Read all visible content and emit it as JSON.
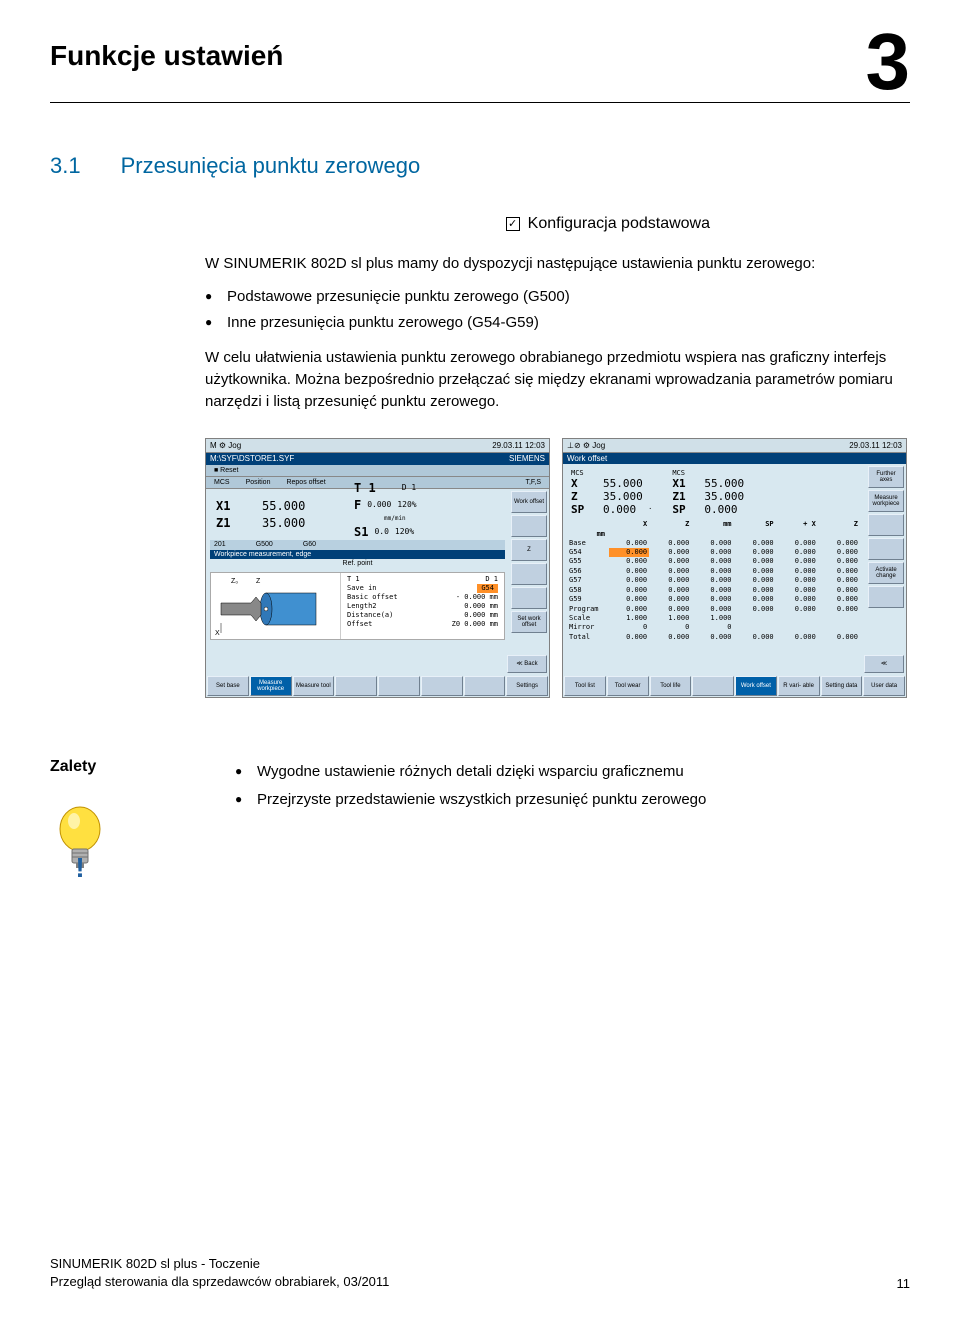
{
  "chapter": {
    "title": "Funkcje ustawień",
    "number": "3"
  },
  "section": {
    "num": "3.1",
    "title": "Przesunięcia punktu zerowego"
  },
  "config": {
    "label": "Konfiguracja podstawowa",
    "check": "✓"
  },
  "intro": "W SINUMERIK 802D sl plus mamy do dyspozycji następujące ustawienia punktu zerowego:",
  "bullets": [
    "Podstawowe przesunięcie punktu zerowego (G500)",
    "Inne przesunięcia punktu zerowego (G54-G59)"
  ],
  "para2": "W celu ułatwienia ustawienia punktu zerowego obrabianego przedmiotu wspiera nas graficzny interfejs użytkownika. Można bezpośrednio przełączać się między ekranami wprowadzania parametrów pomiaru narzędzi i listą przesunięć punktu zerowego.",
  "shotA": {
    "date": "29.03.11",
    "time": "12:03",
    "path": "M:\\SYF\\DSTORE1.SYF",
    "brand": "SIEMENS",
    "hdr": {
      "reset": "■ Reset",
      "mcs": "MCS",
      "pos": "Position",
      "repos": "Repos offset",
      "tfs": "T,F,S"
    },
    "axes": {
      "x1": "X1",
      "x1v": "55.000",
      "z1": "Z1",
      "z1v": "35.000",
      "reposX": "0.000 mm",
      "reposZ": "0.000 mm"
    },
    "tfs": {
      "t": "T 1",
      "d": "D 1",
      "f": "F",
      "fv": "0.000",
      "fpct": "120%",
      "fu": "mm/min",
      "s": "S1",
      "sv": "0.0",
      "spct": "120%",
      "su": "I"
    },
    "offsetbar": {
      "a": "201",
      "b": "G500",
      "c": "G60"
    },
    "wpTitle": "Workpiece measurement, edge",
    "refpoint": "Ref. point",
    "diagT": "T     1",
    "diagD": "D 1",
    "diag": {
      "savein": "Save in",
      "saveinV": "G54",
      "basic": "Basic offset",
      "basicV": "- 0.000 mm",
      "len": "Length2",
      "lenV": "0.000 mm",
      "dist": "Distance(a)",
      "distV": "0.000 mm",
      "off": "Offset",
      "offK": "Z0",
      "offV": "0.000 mm"
    },
    "side": {
      "work": "Work offset",
      "z": "Z",
      "setwork": "Set work offset"
    },
    "back": "≪ Back",
    "bottom": {
      "setbase": "Set base",
      "measwp": "Measure workpiece",
      "meastool": "Measure tool",
      "settings": "Settings"
    }
  },
  "shotB": {
    "date": "29.03.11",
    "time": "12:03",
    "title": "Work offset",
    "mcs": "MCS",
    "axes": {
      "x": "X",
      "xv": "55.000",
      "z": "Z",
      "zv": "35.000",
      "sp": "SP",
      "spv": "0.000",
      "x1": "X1",
      "x1v": "55.000",
      "z1": "Z1",
      "z1v": "35.000",
      "sp2": "SP",
      "sp2v": "0.000",
      "dot": "."
    },
    "table": {
      "headers": [
        "",
        "X",
        "Z",
        "mm",
        "SP",
        "X",
        "Z",
        "mm"
      ],
      "rows": [
        [
          "Base",
          "0.000",
          "0.000",
          "0.000",
          "0.000",
          "0.000",
          "0.000"
        ],
        [
          "G54",
          "0.000",
          "0.000",
          "0.000",
          "0.000",
          "0.000",
          "0.000"
        ],
        [
          "G55",
          "0.000",
          "0.000",
          "0.000",
          "0.000",
          "0.000",
          "0.000"
        ],
        [
          "G56",
          "0.000",
          "0.000",
          "0.000",
          "0.000",
          "0.000",
          "0.000"
        ],
        [
          "G57",
          "0.000",
          "0.000",
          "0.000",
          "0.000",
          "0.000",
          "0.000"
        ],
        [
          "G58",
          "0.000",
          "0.000",
          "0.000",
          "0.000",
          "0.000",
          "0.000"
        ],
        [
          "G59",
          "0.000",
          "0.000",
          "0.000",
          "0.000",
          "0.000",
          "0.000"
        ],
        [
          "Program",
          "0.000",
          "0.000",
          "0.000",
          "0.000",
          "0.000",
          "0.000"
        ],
        [
          "Scale",
          "1.000",
          "1.000",
          "1.000",
          "",
          "",
          ""
        ],
        [
          "Mirror",
          "0",
          "0",
          "0",
          "",
          "",
          ""
        ],
        [
          "Total",
          "0.000",
          "0.000",
          "0.000",
          "0.000",
          "0.000",
          "0.000"
        ]
      ],
      "highlightRow": 1,
      "highlightCol": 1
    },
    "side": {
      "further": "Further axes",
      "measure": "Measure workpiece",
      "activate": "Activate change"
    },
    "back": "≪",
    "bottom": {
      "toollist": "Tool list",
      "toolwear": "Tool wear",
      "toollife": "Tool life",
      "workoffset": "Work offset",
      "rvar": "R vari- able",
      "setting": "Setting data",
      "user": "User data"
    }
  },
  "zalety": {
    "label": "Zalety",
    "items": [
      "Wygodne ustawienie różnych detali dzięki wsparciu graficznemu",
      "Przejrzyste przedstawienie wszystkich przesunięć punktu zerowego"
    ]
  },
  "footer": {
    "line1": "SINUMERIK 802D sl plus - Toczenie",
    "line2": "Przegląd sterowania dla sprzedawców obrabiarek, 03/2011",
    "page": "11"
  },
  "colors": {
    "section": "#0066a0",
    "hmiHeader": "#004078",
    "hmiBg": "#d8e8f0",
    "hmiBtn": "#c0d0e0",
    "highlight": "#ff9028",
    "btnActive": "#0060a8"
  }
}
